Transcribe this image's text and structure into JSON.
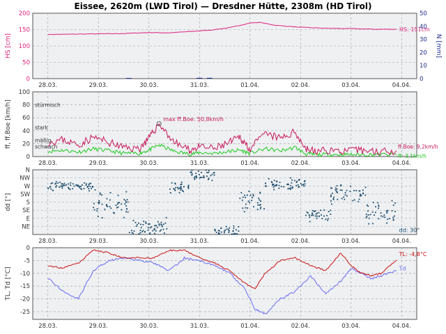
{
  "title": "Eissee, 2620m (LWD Tirol) — Dresdner Hütte, 2308m (HD Tirol)",
  "x_ticks": [
    "28.03.",
    "29.03.",
    "30.03.",
    "31.03.",
    "01.04.",
    "02.04.",
    "03.04.",
    "04.04."
  ],
  "colors": {
    "panel_bg": "#eef0f2",
    "grid": "#9aa0a6",
    "hs": "#e0207a",
    "boe": "#c8185a",
    "ff": "#1ec81e",
    "dd": "#1a4a6a",
    "tl": "#cc1010",
    "td": "#6a6af0",
    "precip": "#1a2a88",
    "axis_hs": "#e0207a",
    "axis_n": "#1a2a88"
  },
  "chart_data": [
    {
      "type": "line",
      "ylabel": "HS [cm]",
      "y2label": "N [mm]",
      "ylim": [
        0,
        200
      ],
      "yticks": [
        0,
        50,
        100,
        150,
        200
      ],
      "y2lim": [
        0,
        50
      ],
      "y2ticks": [
        0,
        10,
        20,
        30,
        40,
        50
      ],
      "grid": true,
      "series": [
        {
          "name": "HS",
          "x": [
            0,
            0.5,
            1,
            1.5,
            2,
            2.4,
            2.8,
            3.2,
            3.6,
            4.0,
            4.2,
            4.5,
            5.0,
            5.5,
            6.0,
            6.5,
            6.9
          ],
          "values": [
            135,
            136,
            137,
            138,
            141,
            140,
            144,
            148,
            156,
            170,
            172,
            163,
            157,
            154,
            153,
            151,
            151
          ]
        }
      ],
      "precip_bars": [
        {
          "x": 1.6,
          "value": 0.5
        },
        {
          "x": 3.0,
          "value": 0.6
        },
        {
          "x": 3.2,
          "value": 0.6
        }
      ],
      "annotation": "HS: 151cm"
    },
    {
      "type": "line",
      "ylabel": "ff, ff.Boe [km/h]",
      "ylim": [
        0,
        100
      ],
      "yticks": [
        0,
        20,
        40,
        60,
        80,
        100
      ],
      "grid": true,
      "level_labels": [
        {
          "label": "stürmisch",
          "y": 75
        },
        {
          "label": "stark",
          "y": 40
        },
        {
          "label": "mäßig",
          "y": 20
        },
        {
          "label": "schwach",
          "y": 10
        }
      ],
      "series": [
        {
          "name": "ff.Boe",
          "x": [
            0,
            0.3,
            0.6,
            0.9,
            1.2,
            1.5,
            1.8,
            2.0,
            2.2,
            2.5,
            2.8,
            3.0,
            3.3,
            3.6,
            3.8,
            4.0,
            4.3,
            4.6,
            4.9,
            5.1,
            5.3,
            5.6,
            5.9,
            6.2,
            6.5,
            6.9
          ],
          "values": [
            22,
            26,
            18,
            30,
            22,
            14,
            12,
            28,
            50.8,
            22,
            10,
            15,
            12,
            22,
            30,
            12,
            35,
            28,
            38,
            12,
            8,
            10,
            8,
            10,
            8,
            9
          ]
        },
        {
          "name": "ff",
          "x": [
            0,
            0.3,
            0.6,
            0.9,
            1.2,
            1.5,
            1.8,
            2.0,
            2.2,
            2.5,
            2.8,
            3.0,
            3.3,
            3.6,
            3.8,
            4.0,
            4.3,
            4.6,
            4.9,
            5.1,
            5.3,
            5.6,
            5.9,
            6.2,
            6.5,
            6.9
          ],
          "values": [
            8,
            10,
            7,
            12,
            9,
            5,
            5,
            10,
            18,
            8,
            4,
            6,
            5,
            8,
            10,
            5,
            12,
            9,
            14,
            4,
            3,
            3,
            3,
            3,
            3,
            3
          ]
        }
      ],
      "max_annotation": {
        "label": "max ff.Boe: 50,8km/h",
        "x": 2.2,
        "value": 50.8
      },
      "annotations": [
        "ff.Boe: 9,2km/h",
        "ff: 3,1km/h"
      ]
    },
    {
      "type": "scatter",
      "ylabel": "dd [°]",
      "ylim": [
        0,
        360
      ],
      "ytick_values": [
        0,
        45,
        90,
        135,
        180,
        225,
        270,
        315,
        360
      ],
      "ytick_labels": [
        "",
        "NE",
        "E",
        "SE",
        "S",
        "SW",
        "W",
        "NW",
        "N"
      ],
      "grid": true,
      "clusters": [
        {
          "x0": 0.0,
          "x1": 0.9,
          "center": 270,
          "spread": 30
        },
        {
          "x0": 0.9,
          "x1": 1.6,
          "center": 170,
          "spread": 90
        },
        {
          "x0": 1.6,
          "x1": 2.4,
          "center": 40,
          "spread": 60
        },
        {
          "x0": 2.4,
          "x1": 2.8,
          "center": 260,
          "spread": 40
        },
        {
          "x0": 2.8,
          "x1": 3.3,
          "center": 330,
          "spread": 40
        },
        {
          "x0": 3.3,
          "x1": 3.8,
          "center": 20,
          "spread": 30
        },
        {
          "x0": 3.8,
          "x1": 4.3,
          "center": 200,
          "spread": 80
        },
        {
          "x0": 4.3,
          "x1": 5.1,
          "center": 280,
          "spread": 40
        },
        {
          "x0": 5.1,
          "x1": 5.6,
          "center": 100,
          "spread": 50
        },
        {
          "x0": 5.6,
          "x1": 6.3,
          "center": 230,
          "spread": 70
        },
        {
          "x0": 6.3,
          "x1": 6.9,
          "center": 120,
          "spread": 70
        }
      ],
      "annotation": "dd: 30°"
    },
    {
      "type": "line",
      "ylabel": "TL, Td [°C]",
      "ylim": [
        -28,
        0
      ],
      "yticks": [
        -25,
        -20,
        -15,
        -10,
        -5,
        0
      ],
      "grid": true,
      "series": [
        {
          "name": "TL",
          "x": [
            0,
            0.3,
            0.6,
            0.9,
            1.2,
            1.5,
            1.8,
            2.1,
            2.4,
            2.7,
            3.0,
            3.3,
            3.6,
            3.9,
            4.1,
            4.3,
            4.6,
            4.9,
            5.2,
            5.5,
            5.8,
            6.0,
            6.2,
            6.4,
            6.6,
            6.9
          ],
          "values": [
            -7,
            -8,
            -6,
            -1,
            -2,
            -4,
            -4,
            -4,
            -1,
            -1,
            -4,
            -6,
            -9,
            -14,
            -16,
            -10,
            -5,
            -4,
            -7,
            -9,
            -2,
            -7,
            -10,
            -11,
            -10,
            -4.8
          ]
        },
        {
          "name": "Td",
          "x": [
            0,
            0.3,
            0.6,
            0.9,
            1.2,
            1.5,
            1.8,
            2.1,
            2.4,
            2.7,
            3.0,
            3.3,
            3.6,
            3.9,
            4.1,
            4.3,
            4.6,
            4.9,
            5.2,
            5.5,
            5.8,
            6.0,
            6.2,
            6.4,
            6.6,
            6.9
          ],
          "values": [
            -12,
            -17,
            -20,
            -9,
            -5,
            -4,
            -5,
            -6,
            -9,
            -4,
            -5,
            -7,
            -10,
            -16,
            -24,
            -26,
            -20,
            -17,
            -11,
            -18,
            -13,
            -8,
            -10,
            -12,
            -11,
            -9
          ]
        }
      ],
      "annotations": [
        "TL: -4,8°C",
        "Td"
      ]
    }
  ]
}
